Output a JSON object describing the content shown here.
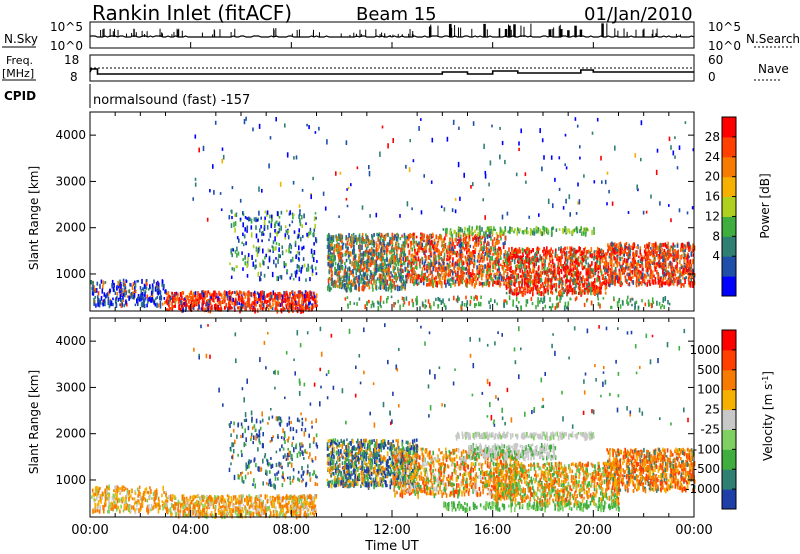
{
  "header": {
    "station": "Rankin Inlet (fitACF)",
    "beam": "Beam 15",
    "date": "01/Jan/2010"
  },
  "strips": {
    "nsky_label": "N.Sky",
    "nsky_ticks": [
      "10^5",
      "10^0"
    ],
    "nsearch_label": "N.Search",
    "freq_label": "Freq.",
    "freq_unit": "[MHz]",
    "freq_ticks": [
      "18",
      "8"
    ],
    "nave_label": "Nave",
    "nave_ticks": [
      "60",
      "0"
    ],
    "cpid_label": "CPID",
    "cpid_text": "normalsound (fast) -157"
  },
  "chart_data": [
    {
      "type": "heatmap",
      "panel": "power",
      "ylabel": "Slant Range [km]",
      "yticks": [
        "1000",
        "2000",
        "3000",
        "4000"
      ],
      "ylim": [
        200,
        4500
      ],
      "colorbar_label": "Power [dB]",
      "colorbar_ticks": [
        "28",
        "24",
        "20",
        "16",
        "12",
        "8",
        "4"
      ],
      "colors": [
        "#0000ff",
        "#1f4fa8",
        "#2f7f73",
        "#3fae3f",
        "#b0d020",
        "#f5b000",
        "#f77b00",
        "#ff4000",
        "#ff0000"
      ]
    },
    {
      "type": "heatmap",
      "panel": "velocity",
      "ylabel": "Slant Range [km]",
      "yticks": [
        "1000",
        "2000",
        "3000",
        "4000"
      ],
      "ylim": [
        200,
        4500
      ],
      "colorbar_label": "Velocity [m s^-1]",
      "colorbar_ticks": [
        "1000",
        "500",
        "100",
        "25",
        "-25",
        "-100",
        "-500",
        "-1000"
      ],
      "colors": [
        "#1f3fa8",
        "#2f7f73",
        "#3fae3f",
        "#7fd060",
        "#c8c8c8",
        "#f5b000",
        "#f77b00",
        "#ff4000",
        "#ff0000"
      ]
    }
  ],
  "x_axis": {
    "label": "Time UT",
    "ticks": [
      "00:00",
      "04:00",
      "08:00",
      "12:00",
      "16:00",
      "20:00",
      "00:00"
    ]
  }
}
